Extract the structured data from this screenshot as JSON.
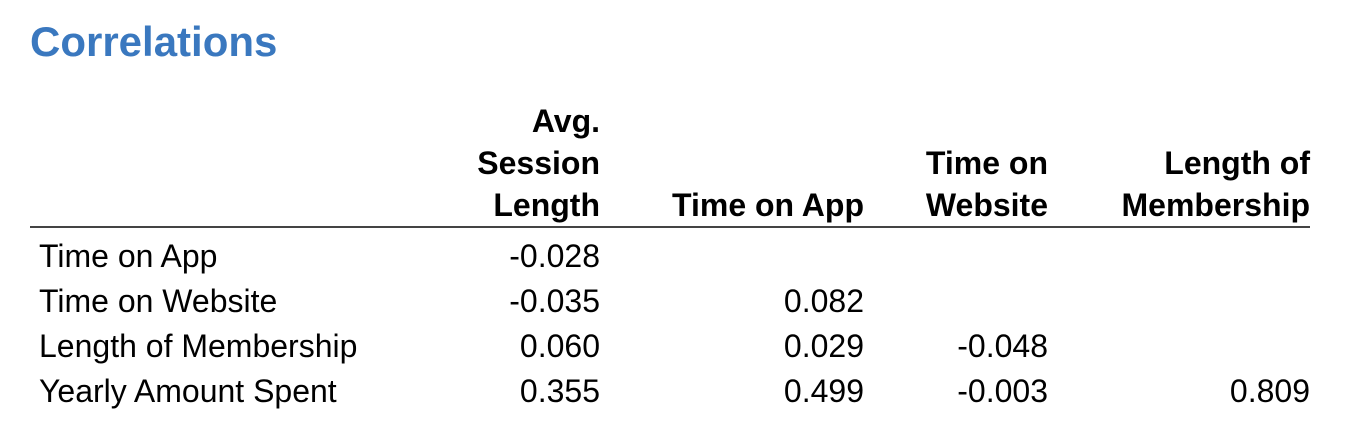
{
  "title": "Correlations",
  "table": {
    "columns": [
      [
        "Avg.",
        "Session",
        "Length"
      ],
      [
        "Time on App"
      ],
      [
        "Time on",
        "Website"
      ],
      [
        "Length of",
        "Membership"
      ]
    ],
    "rows": [
      {
        "label": "Time on App",
        "values": [
          "-0.028",
          "",
          "",
          ""
        ]
      },
      {
        "label": "Time on Website",
        "values": [
          "-0.035",
          "0.082",
          "",
          ""
        ]
      },
      {
        "label": "Length of Membership",
        "values": [
          "0.060",
          "0.029",
          "-0.048",
          ""
        ]
      },
      {
        "label": "Yearly Amount Spent",
        "values": [
          "0.355",
          "0.499",
          "-0.003",
          "0.809"
        ]
      }
    ]
  },
  "colors": {
    "title": "#3a78bf",
    "text": "#000000",
    "rule": "#444444"
  }
}
